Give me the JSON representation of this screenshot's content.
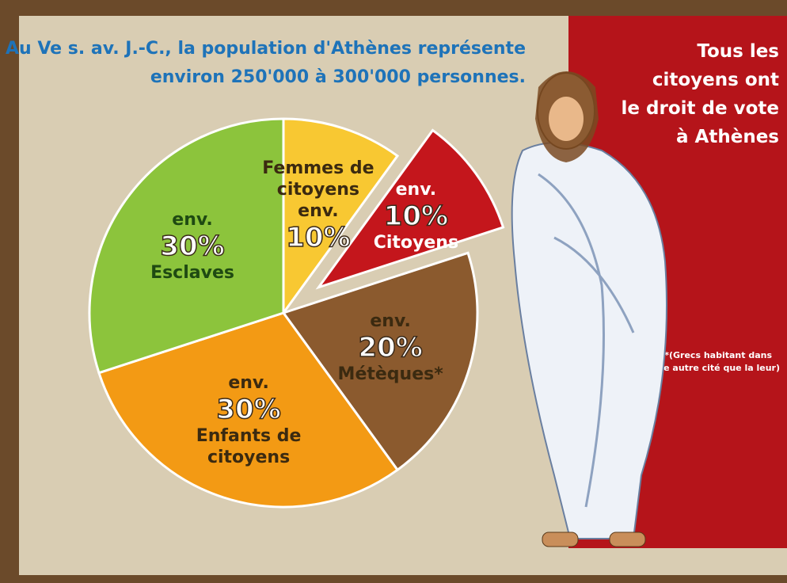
{
  "chart_data": {
    "type": "pie",
    "title": [
      "Au Ve s. av. J.-C., la population d'Athènes représente",
      "environ 250'000 à 300'000 personnes."
    ],
    "categories": [
      "Femmes de citoyens",
      "Citoyens",
      "Métèques*",
      "Enfants de citoyens",
      "Esclaves"
    ],
    "values": [
      10,
      10,
      20,
      30,
      30
    ],
    "value_labels": [
      "10%",
      "10%",
      "20%",
      "30%",
      "30%"
    ],
    "value_prefix": "env.",
    "colors": [
      "#f8c832",
      "#c4161c",
      "#8b5a2e",
      "#f39a14",
      "#8cc43c"
    ],
    "exploded": [
      false,
      true,
      false,
      false,
      false
    ],
    "panel_text": [
      "Tous les",
      "citoyens ont",
      "le droit de vote",
      "à Athènes"
    ],
    "footnote": [
      "*(Grecs habitant dans",
      "une autre cité que la leur)"
    ]
  }
}
